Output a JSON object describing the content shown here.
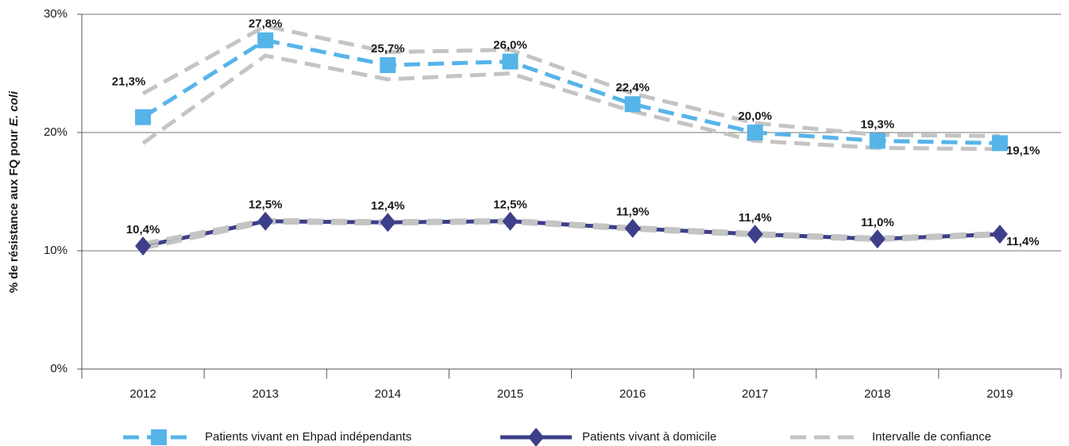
{
  "chart_data": {
    "type": "line",
    "y_label": {
      "text": "% de résistance aux FQ pour",
      "italic": "E. coli"
    },
    "categories": [
      "2012",
      "2013",
      "2014",
      "2015",
      "2016",
      "2017",
      "2018",
      "2019"
    ],
    "series": [
      {
        "name": "Patients vivant en Ehpad indépendants",
        "color": "#56b4e9",
        "marker": "square",
        "dashed": true,
        "values": [
          21.3,
          27.8,
          25.7,
          26.0,
          22.4,
          20.0,
          19.3,
          19.1
        ],
        "value_labels": [
          "21,3%",
          "27,8%",
          "25,7%",
          "26,0%",
          "22,4%",
          "20,0%",
          "19,3%",
          "19,1%"
        ]
      },
      {
        "name": "Patients vivant à domicile",
        "color": "#3d3f8a",
        "marker": "diamond",
        "dashed": false,
        "values": [
          10.4,
          12.5,
          12.4,
          12.5,
          11.9,
          11.4,
          11.0,
          11.4
        ],
        "value_labels": [
          "10,4%",
          "12,5%",
          "12,4%",
          "12,5%",
          "11,9%",
          "11,4%",
          "11,0%",
          "11,4%"
        ]
      }
    ],
    "confidence_interval": {
      "name": "Intervalle de confiance",
      "color": "#c4c4c4",
      "bands": [
        {
          "upper": [
            23.3,
            29.0,
            26.8,
            27.0,
            23.3,
            20.8,
            19.8,
            19.7
          ],
          "lower": [
            19.1,
            26.5,
            24.5,
            25.0,
            21.8,
            19.3,
            18.7,
            18.6
          ]
        },
        {
          "upper": [
            10.6,
            12.6,
            12.5,
            12.6,
            12.0,
            11.5,
            11.1,
            11.5
          ],
          "lower": [
            10.2,
            12.4,
            12.3,
            12.4,
            11.8,
            11.3,
            10.9,
            11.3
          ]
        }
      ]
    },
    "ylim": [
      0,
      30
    ],
    "yticks": [
      {
        "value": 0,
        "label": "0%"
      },
      {
        "value": 10,
        "label": "10%"
      },
      {
        "value": 20,
        "label": "20%"
      },
      {
        "value": 30,
        "label": "30%"
      }
    ],
    "grid": true
  }
}
